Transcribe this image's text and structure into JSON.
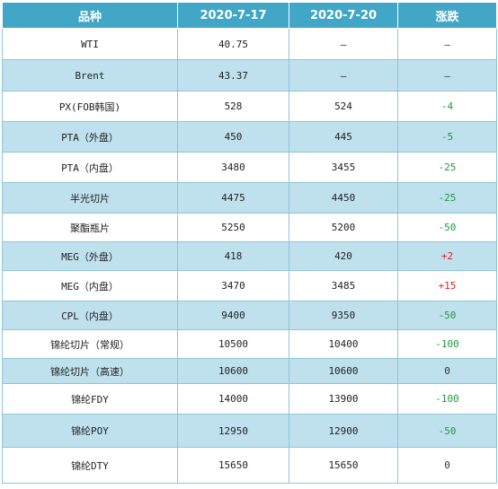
{
  "headers": [
    "品种",
    "2020-7-17",
    "2020-7-20",
    "涨跌"
  ],
  "rows": [
    {
      "name": "WTI",
      "d1": "40.75",
      "d2": "—",
      "change": "—",
      "dir": "flat",
      "h": 35
    },
    {
      "name": "Brent",
      "d1": "43.37",
      "d2": "—",
      "change": "—",
      "dir": "flat",
      "h": 35
    },
    {
      "name": "PX(FOB韩国)",
      "d1": "528",
      "d2": "524",
      "change": "-4",
      "dir": "down",
      "h": 34
    },
    {
      "name": "PTA（外盘）",
      "d1": "450",
      "d2": "445",
      "change": "-5",
      "dir": "down",
      "h": 34
    },
    {
      "name": "PTA（内盘）",
      "d1": "3480",
      "d2": "3455",
      "change": "-25",
      "dir": "down",
      "h": 34
    },
    {
      "name": "半光切片",
      "d1": "4475",
      "d2": "4450",
      "change": "-25",
      "dir": "down",
      "h": 34
    },
    {
      "name": "聚酯瓶片",
      "d1": "5250",
      "d2": "5200",
      "change": "-50",
      "dir": "down",
      "h": 32
    },
    {
      "name": "MEG（外盘）",
      "d1": "418",
      "d2": "420",
      "change": "+2",
      "dir": "up",
      "h": 32
    },
    {
      "name": "MEG（内盘）",
      "d1": "3470",
      "d2": "3485",
      "change": "+15",
      "dir": "up",
      "h": 34
    },
    {
      "name": "CPL（内盘）",
      "d1": "9400",
      "d2": "9350",
      "change": "-50",
      "dir": "down",
      "h": 32
    },
    {
      "name": "锦纶切片（常规）",
      "d1": "10500",
      "d2": "10400",
      "change": "-100",
      "dir": "down",
      "h": 32
    },
    {
      "name": "锦纶切片（高速）",
      "d1": "10600",
      "d2": "10600",
      "change": "0",
      "dir": "flat",
      "h": 28
    },
    {
      "name": "锦纶FDY",
      "d1": "14000",
      "d2": "13900",
      "change": "-100",
      "dir": "down",
      "h": 34
    },
    {
      "name": "锦纶POY",
      "d1": "12950",
      "d2": "12900",
      "change": "-50",
      "dir": "down",
      "h": 37
    },
    {
      "name": "锦纶DTY",
      "d1": "15650",
      "d2": "15650",
      "change": "0",
      "dir": "flat",
      "h": 40
    }
  ],
  "colors": {
    "header_bg": "#42a7c7",
    "alt_row_bg": "#bfe1ee",
    "up": "#e02020",
    "down": "#1f9a3a"
  }
}
